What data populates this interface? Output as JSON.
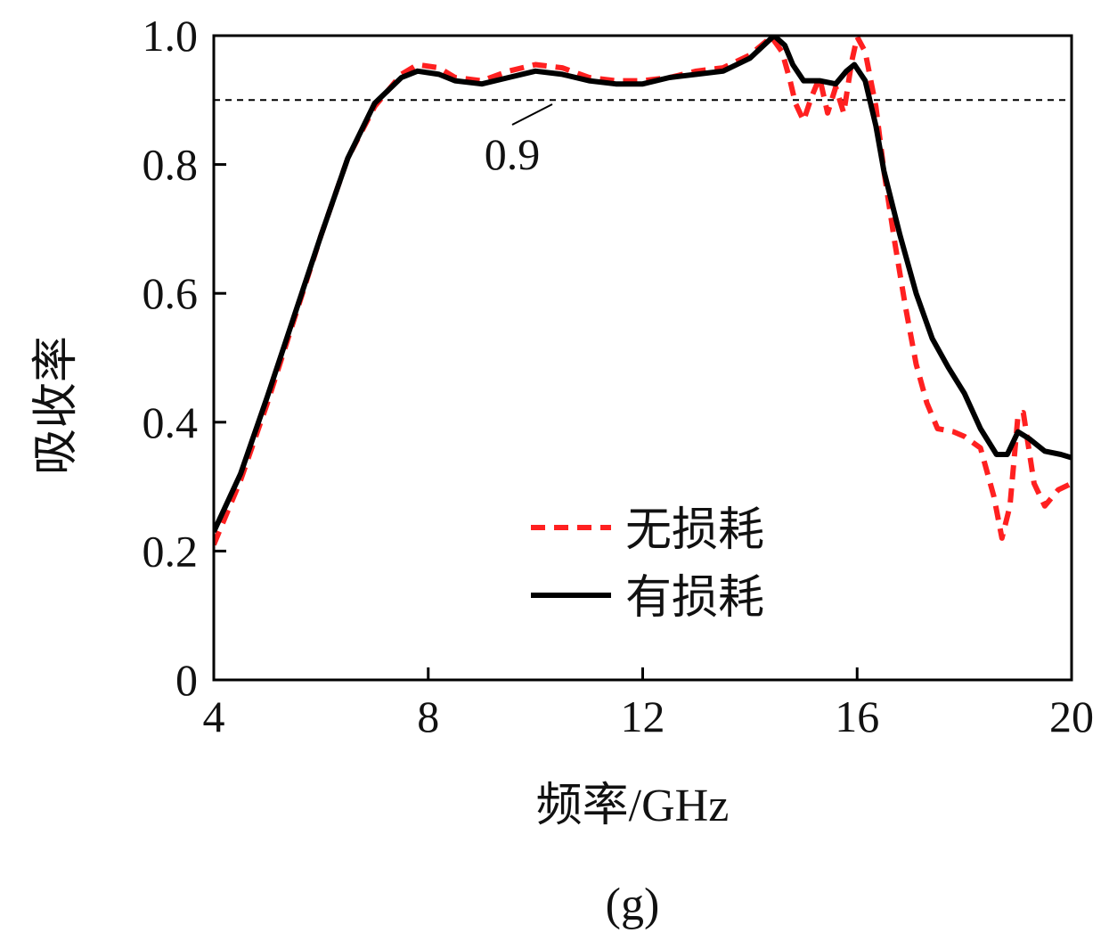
{
  "chart_data": {
    "type": "line",
    "xlabel": "频率/GHz",
    "ylabel": "吸收率",
    "xlim": [
      4,
      20
    ],
    "ylim": [
      0,
      1.0
    ],
    "xticks": [
      4,
      8,
      12,
      16,
      20
    ],
    "xtick_labels": [
      "4",
      "8",
      "12",
      "16",
      "20"
    ],
    "yticks": [
      0,
      0.2,
      0.4,
      0.6,
      0.8,
      1.0
    ],
    "ytick_labels": [
      "0",
      "0.2",
      "0.4",
      "0.6",
      "0.8",
      "1.0"
    ],
    "grid": false,
    "legend_position": "bottom-center",
    "reference_line": {
      "y": 0.9,
      "label": "0.9",
      "style": "dashed",
      "color": "#000000"
    },
    "caption": "(g)",
    "series": [
      {
        "name": "无损耗",
        "style": "dashed",
        "color": "#ff2020",
        "points": [
          [
            4.0,
            0.21
          ],
          [
            4.5,
            0.31
          ],
          [
            5.0,
            0.43
          ],
          [
            5.5,
            0.56
          ],
          [
            6.0,
            0.69
          ],
          [
            6.5,
            0.81
          ],
          [
            7.0,
            0.89
          ],
          [
            7.5,
            0.94
          ],
          [
            7.8,
            0.955
          ],
          [
            8.2,
            0.95
          ],
          [
            8.5,
            0.935
          ],
          [
            9.0,
            0.93
          ],
          [
            9.5,
            0.945
          ],
          [
            10.0,
            0.955
          ],
          [
            10.5,
            0.95
          ],
          [
            11.0,
            0.935
          ],
          [
            11.5,
            0.93
          ],
          [
            12.0,
            0.93
          ],
          [
            12.5,
            0.935
          ],
          [
            13.0,
            0.945
          ],
          [
            13.5,
            0.95
          ],
          [
            14.0,
            0.97
          ],
          [
            14.4,
            0.998
          ],
          [
            14.6,
            0.975
          ],
          [
            14.75,
            0.93
          ],
          [
            14.85,
            0.895
          ],
          [
            15.0,
            0.868
          ],
          [
            15.15,
            0.905
          ],
          [
            15.3,
            0.935
          ],
          [
            15.45,
            0.88
          ],
          [
            15.6,
            0.92
          ],
          [
            15.75,
            0.88
          ],
          [
            15.9,
            0.96
          ],
          [
            16.0,
            0.998
          ],
          [
            16.15,
            0.975
          ],
          [
            16.35,
            0.89
          ],
          [
            16.5,
            0.79
          ],
          [
            16.7,
            0.68
          ],
          [
            16.9,
            0.58
          ],
          [
            17.1,
            0.49
          ],
          [
            17.3,
            0.43
          ],
          [
            17.5,
            0.39
          ],
          [
            17.8,
            0.385
          ],
          [
            18.0,
            0.378
          ],
          [
            18.3,
            0.36
          ],
          [
            18.55,
            0.285
          ],
          [
            18.7,
            0.22
          ],
          [
            18.85,
            0.27
          ],
          [
            19.0,
            0.41
          ],
          [
            19.1,
            0.415
          ],
          [
            19.3,
            0.305
          ],
          [
            19.5,
            0.27
          ],
          [
            19.75,
            0.295
          ],
          [
            20.0,
            0.305
          ]
        ]
      },
      {
        "name": "有损耗",
        "style": "solid",
        "color": "#000000",
        "points": [
          [
            4.0,
            0.23
          ],
          [
            4.5,
            0.32
          ],
          [
            5.0,
            0.44
          ],
          [
            5.5,
            0.565
          ],
          [
            6.0,
            0.69
          ],
          [
            6.5,
            0.81
          ],
          [
            7.0,
            0.895
          ],
          [
            7.5,
            0.935
          ],
          [
            7.8,
            0.945
          ],
          [
            8.2,
            0.94
          ],
          [
            8.5,
            0.93
          ],
          [
            9.0,
            0.925
          ],
          [
            9.5,
            0.935
          ],
          [
            10.0,
            0.945
          ],
          [
            10.5,
            0.94
          ],
          [
            11.0,
            0.93
          ],
          [
            11.5,
            0.925
          ],
          [
            12.0,
            0.925
          ],
          [
            12.5,
            0.935
          ],
          [
            13.0,
            0.94
          ],
          [
            13.5,
            0.945
          ],
          [
            14.0,
            0.965
          ],
          [
            14.45,
            1.0
          ],
          [
            14.65,
            0.985
          ],
          [
            14.8,
            0.955
          ],
          [
            15.0,
            0.93
          ],
          [
            15.3,
            0.93
          ],
          [
            15.6,
            0.925
          ],
          [
            15.8,
            0.945
          ],
          [
            15.95,
            0.955
          ],
          [
            16.15,
            0.93
          ],
          [
            16.35,
            0.86
          ],
          [
            16.5,
            0.79
          ],
          [
            16.8,
            0.69
          ],
          [
            17.1,
            0.6
          ],
          [
            17.4,
            0.53
          ],
          [
            17.7,
            0.485
          ],
          [
            18.0,
            0.445
          ],
          [
            18.3,
            0.39
          ],
          [
            18.6,
            0.35
          ],
          [
            18.8,
            0.35
          ],
          [
            19.0,
            0.385
          ],
          [
            19.2,
            0.375
          ],
          [
            19.5,
            0.355
          ],
          [
            19.8,
            0.35
          ],
          [
            20.0,
            0.345
          ]
        ]
      }
    ]
  }
}
